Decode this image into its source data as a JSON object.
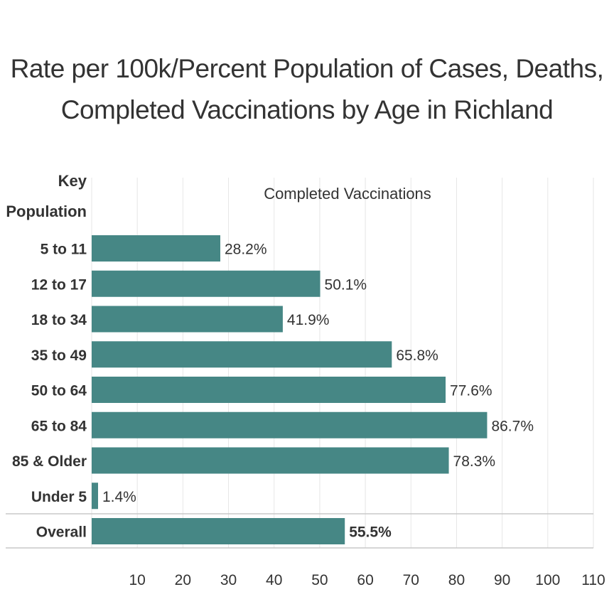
{
  "title_line1": "Rate per 100k/Percent Population of Cases, Deaths,",
  "title_line2": "Completed Vaccinations by Age in Richland",
  "header_key": "Key",
  "header_population": "Population",
  "column_title": "Completed Vaccinations",
  "colors": {
    "bar": "#468785",
    "grid": "#e6e6e6",
    "rule": "#c8c8c8",
    "text": "#333333"
  },
  "chart_data": {
    "type": "bar",
    "orientation": "horizontal",
    "title": "Rate per 100k/Percent Population of Cases, Deaths, Completed Vaccinations by Age in Richland",
    "xlabel": "Completed Vaccinations",
    "ylabel": "Key Population",
    "categories": [
      "5 to 11",
      "12 to 17",
      "18 to 34",
      "35 to 49",
      "50 to 64",
      "65 to 84",
      "85 & Older",
      "Under 5",
      "Overall"
    ],
    "values": [
      28.2,
      50.1,
      41.9,
      65.8,
      77.6,
      86.7,
      78.3,
      1.4,
      55.5
    ],
    "labels": [
      "28.2%",
      "50.1%",
      "41.9%",
      "65.8%",
      "77.6%",
      "86.7%",
      "78.3%",
      "1.4%",
      "55.5%"
    ],
    "emphasized": [
      "Overall"
    ],
    "xlim": [
      0,
      110
    ],
    "xticks": [
      10,
      20,
      30,
      40,
      50,
      60,
      70,
      80,
      90,
      100,
      110
    ],
    "grid": true
  }
}
